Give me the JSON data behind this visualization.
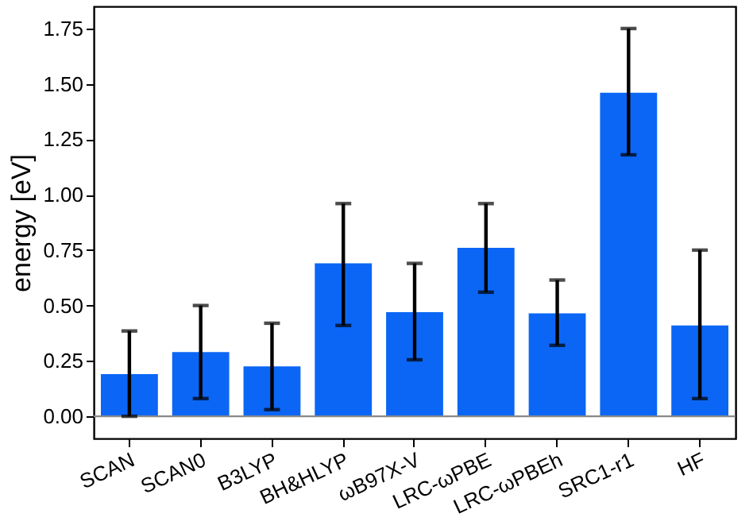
{
  "chart_data": {
    "type": "bar",
    "ylabel": "energy [eV]",
    "categories": [
      "SCAN",
      "SCAN0",
      "B3LYP",
      "BH&HLYP",
      "ωB97X-V",
      "LRC-ωPBE",
      "LRC-ωPBEh",
      "SRC1-r1",
      "HF"
    ],
    "values": [
      0.19,
      0.29,
      0.225,
      0.69,
      0.47,
      0.76,
      0.465,
      1.46,
      0.41
    ],
    "errors": [
      [
        0.0,
        0.385
      ],
      [
        0.08,
        0.5
      ],
      [
        0.03,
        0.42
      ],
      [
        0.41,
        0.96
      ],
      [
        0.255,
        0.69
      ],
      [
        0.56,
        0.96
      ],
      [
        0.32,
        0.615
      ],
      [
        1.18,
        1.75
      ],
      [
        0.08,
        0.75
      ]
    ],
    "color": "#0b66f5",
    "ylim": [
      -0.1,
      1.85
    ],
    "yticks": [
      {
        "value": 0,
        "label": "0.00"
      },
      {
        "value": 0.25,
        "label": "0.25"
      },
      {
        "value": 0.5,
        "label": "0.50"
      },
      {
        "value": 0.75,
        "label": "0.75"
      },
      {
        "value": 1,
        "label": "1.00"
      },
      {
        "value": 1.25,
        "label": "1.25"
      },
      {
        "value": 1.5,
        "label": "1.50"
      },
      {
        "value": 1.75,
        "label": "1.75"
      }
    ],
    "ref_lines": [
      {
        "axis": "y",
        "value": 0,
        "color": "#888888"
      }
    ],
    "grid": false
  }
}
